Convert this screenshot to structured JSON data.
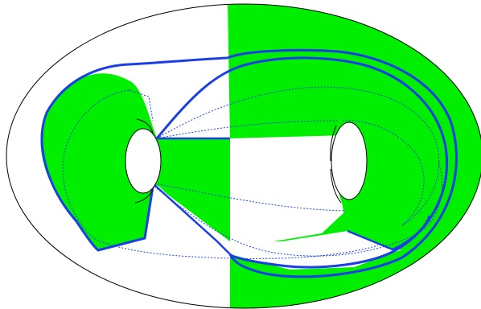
{
  "figure": {
    "colors": {
      "background": "#ffffff",
      "fill": "#00ee00",
      "outline": "#000000",
      "curve": "#1a3fe6"
    }
  }
}
